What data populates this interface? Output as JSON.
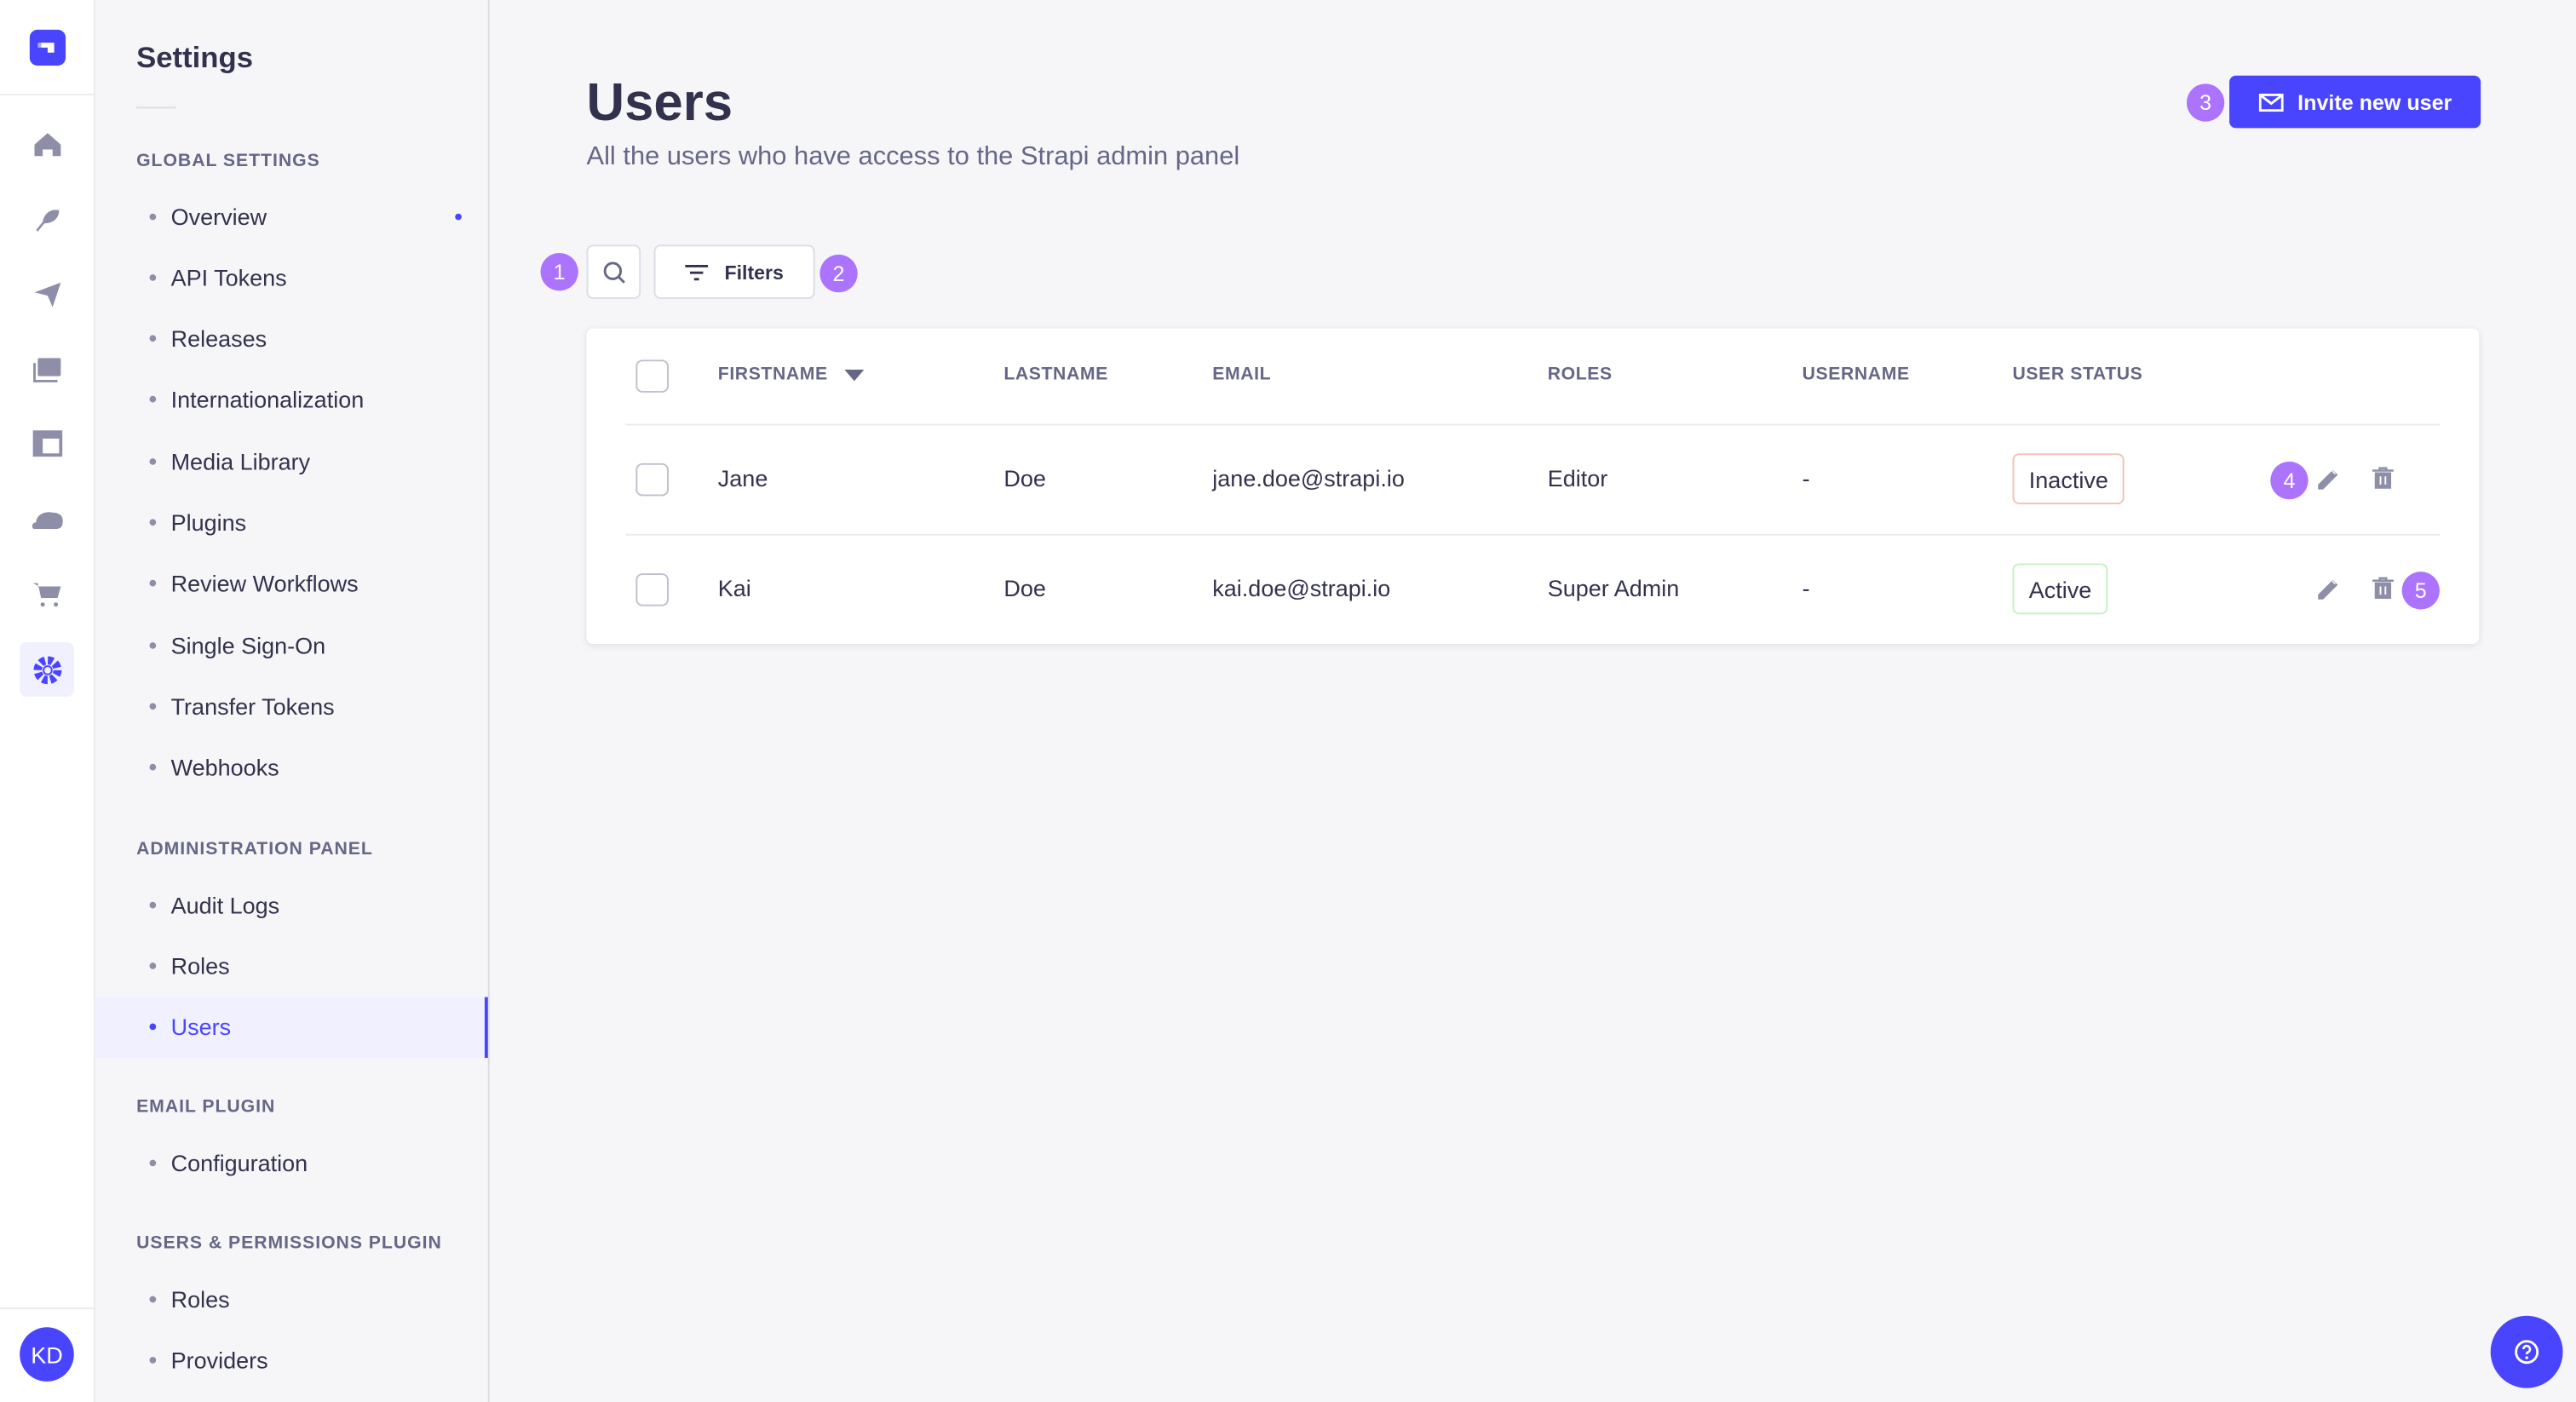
{
  "colors": {
    "primary": "#4945ff",
    "annotation": "#ac73ff",
    "inactive_border": "#f5c0b8",
    "active_border": "#c6f0c2"
  },
  "icon_nav": {
    "items": [
      "strapi-logo-icon",
      "home-icon",
      "feather-icon",
      "paper-plane-icon",
      "media-icon",
      "layout-icon",
      "cloud-icon",
      "cart-icon",
      "gear-icon"
    ],
    "active": "gear-icon",
    "avatar_initials": "KD"
  },
  "sidebar": {
    "title": "Settings",
    "sections": [
      {
        "heading": "GLOBAL SETTINGS",
        "items": [
          "Overview",
          "API Tokens",
          "Releases",
          "Internationalization",
          "Media Library",
          "Plugins",
          "Review Workflows",
          "Single Sign-On",
          "Transfer Tokens",
          "Webhooks"
        ]
      },
      {
        "heading": "ADMINISTRATION PANEL",
        "items": [
          "Audit Logs",
          "Roles",
          "Users"
        ]
      },
      {
        "heading": "EMAIL PLUGIN",
        "items": [
          "Configuration"
        ]
      },
      {
        "heading": "USERS & PERMISSIONS PLUGIN",
        "items": [
          "Roles",
          "Providers"
        ]
      }
    ],
    "active_item": "Users"
  },
  "header": {
    "title": "Users",
    "subtitle": "All the users who have access to the Strapi admin panel",
    "invite_label": "Invite new user"
  },
  "toolbar": {
    "filters_label": "Filters"
  },
  "annotations": [
    "1",
    "2",
    "3",
    "4",
    "5"
  ],
  "table": {
    "columns": [
      "FIRSTNAME",
      "LASTNAME",
      "EMAIL",
      "ROLES",
      "USERNAME",
      "USER STATUS"
    ],
    "sort_column": "FIRSTNAME",
    "rows": [
      {
        "firstname": "Jane",
        "lastname": "Doe",
        "email": "jane.doe@strapi.io",
        "roles": "Editor",
        "username": "-",
        "status": "Inactive"
      },
      {
        "firstname": "Kai",
        "lastname": "Doe",
        "email": "kai.doe@strapi.io",
        "roles": "Super Admin",
        "username": "-",
        "status": "Active"
      }
    ]
  }
}
